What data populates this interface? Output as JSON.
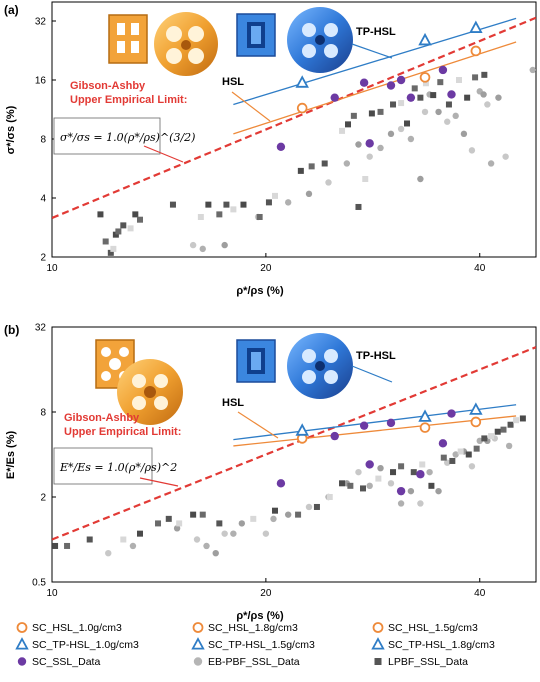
{
  "colors": {
    "orange": "#ee8a3a",
    "blue": "#2f7dc6",
    "purple": "#6c3aa3",
    "grey_light": "#c8c8c8",
    "grey_mid": "#9e9e9e",
    "grey_dark": "#555555",
    "red_limit": "#e23a35"
  },
  "legend": [
    {
      "label": "SC_HSL_1.0g/cm3",
      "marker": "circle-open",
      "color": "#ee8a3a"
    },
    {
      "label": "SC_HSL_1.8g/cm3",
      "marker": "circle-open",
      "color": "#ee8a3a"
    },
    {
      "label": "SC_HSL_1.5g/cm3",
      "marker": "circle-open",
      "color": "#ee8a3a"
    },
    {
      "label": "SC_TP-HSL_1.0g/cm3",
      "marker": "triangle-open",
      "color": "#2f7dc6"
    },
    {
      "label": "SC_TP-HSL_1.5g/cm3",
      "marker": "triangle-open",
      "color": "#2f7dc6"
    },
    {
      "label": "SC_TP-HSL_1.8g/cm3",
      "marker": "triangle-open",
      "color": "#2f7dc6"
    },
    {
      "label": "SC_SSL_Data",
      "marker": "circle-filled",
      "color": "#6c3aa3"
    },
    {
      "label": "EB-PBF_SSL_Data",
      "marker": "circle-filled",
      "color": "#b5b5b5"
    },
    {
      "label": "LPBF_SSL_Data",
      "marker": "square-filled",
      "color": "#555555"
    }
  ],
  "chart_data": [
    {
      "panel": "(a)",
      "type": "scatter",
      "xlabel": "ρ*/ρs (%)",
      "ylabel": "σ*/σs (%)",
      "xscale": "log",
      "yscale": "log",
      "xlim": [
        10,
        48
      ],
      "ylim": [
        2,
        40
      ],
      "xticks": [
        10,
        20,
        40
      ],
      "yticks": [
        2,
        4,
        8,
        16,
        32
      ],
      "annotations": {
        "gibson": [
          "Gibson-Ashby",
          "Upper Empirical Limit:"
        ],
        "formula": "σ*/σs = 1.0(ρ*/ρs)^(3/2)",
        "hsl": "HSL",
        "tphsl": "TP-HSL"
      },
      "limit_line": {
        "coef": 1.0,
        "exponent": 1.5
      },
      "hsl_points": [
        [
          22.5,
          11.5
        ],
        [
          33.5,
          16.5
        ],
        [
          39.5,
          22.5
        ]
      ],
      "hsl_fit": [
        [
          18,
          8.5
        ],
        [
          45,
          25
        ]
      ],
      "tphsl_points": [
        [
          22.5,
          15.5
        ],
        [
          33.5,
          25.5
        ],
        [
          39.5,
          29.5
        ]
      ],
      "tphsl_fit": [
        [
          18,
          12
        ],
        [
          45,
          33
        ]
      ],
      "ssl_points": [
        [
          21,
          7.3
        ],
        [
          25,
          13
        ],
        [
          27.5,
          15.5
        ],
        [
          28,
          7.6
        ],
        [
          30,
          15
        ],
        [
          31,
          16
        ],
        [
          32,
          13
        ],
        [
          35.5,
          18
        ],
        [
          36.5,
          13.5
        ]
      ],
      "eb_points": [
        [
          15.8,
          2.3
        ],
        [
          16.3,
          2.2
        ],
        [
          17.5,
          2.3
        ],
        [
          19.5,
          3.2
        ],
        [
          21.5,
          3.8
        ],
        [
          23,
          4.2
        ],
        [
          24.5,
          4.8
        ],
        [
          26,
          6
        ],
        [
          27,
          7.5
        ],
        [
          28,
          6.5
        ],
        [
          29,
          7.2
        ],
        [
          30,
          8.5
        ],
        [
          31,
          9
        ],
        [
          32,
          8
        ],
        [
          33,
          5
        ],
        [
          33.5,
          11
        ],
        [
          34,
          13.5
        ],
        [
          35,
          11
        ],
        [
          36,
          9.8
        ],
        [
          37,
          10.5
        ],
        [
          38,
          8.5
        ],
        [
          39,
          7
        ],
        [
          40,
          14
        ],
        [
          40.5,
          13.5
        ],
        [
          41,
          12
        ],
        [
          41.5,
          6
        ],
        [
          42.5,
          13
        ],
        [
          43.5,
          6.5
        ],
        [
          47.5,
          18
        ]
      ],
      "lpbf_points": [
        [
          11.7,
          3.3
        ],
        [
          11.9,
          2.4
        ],
        [
          12.1,
          2.1
        ],
        [
          12.2,
          2.2
        ],
        [
          12.3,
          2.6
        ],
        [
          12.4,
          2.7
        ],
        [
          12.6,
          2.9
        ],
        [
          12.9,
          2.8
        ],
        [
          13.1,
          3.3
        ],
        [
          13.3,
          3.1
        ],
        [
          14.8,
          3.7
        ],
        [
          16.2,
          3.2
        ],
        [
          16.6,
          3.7
        ],
        [
          17.2,
          3.3
        ],
        [
          17.6,
          3.7
        ],
        [
          18,
          3.5
        ],
        [
          18.6,
          3.7
        ],
        [
          19.6,
          3.2
        ],
        [
          20.2,
          3.8
        ],
        [
          20.6,
          4.1
        ],
        [
          22.4,
          5.5
        ],
        [
          23.2,
          5.8
        ],
        [
          24.2,
          6
        ],
        [
          25.6,
          8.8
        ],
        [
          26.1,
          9.5
        ],
        [
          26.6,
          10.5
        ],
        [
          27,
          3.6
        ],
        [
          27.6,
          5
        ],
        [
          28.2,
          10.8
        ],
        [
          29,
          11
        ],
        [
          30.2,
          12
        ],
        [
          31,
          12.2
        ],
        [
          31.6,
          9.6
        ],
        [
          32.4,
          14.5
        ],
        [
          33,
          13
        ],
        [
          33.6,
          15.4
        ],
        [
          34.4,
          13.4
        ],
        [
          35.2,
          15.6
        ],
        [
          36.2,
          12
        ],
        [
          37.4,
          16
        ],
        [
          38.4,
          13
        ],
        [
          39.4,
          16.5
        ],
        [
          40.6,
          17
        ]
      ]
    },
    {
      "panel": "(b)",
      "type": "scatter",
      "xlabel": "ρ*/ρs (%)",
      "ylabel": "E*/Es (%)",
      "xscale": "log",
      "yscale": "log",
      "xlim": [
        10,
        48
      ],
      "ylim": [
        0.5,
        32
      ],
      "xticks": [
        10,
        20,
        40
      ],
      "yticks": [
        0.5,
        2,
        8,
        32
      ],
      "annotations": {
        "gibson": [
          "Gibson-Ashby",
          "Upper Empirical Limit:"
        ],
        "formula": "E*/Es = 1.0(ρ*/ρs)^2",
        "hsl": "HSL",
        "tphsl": "TP-HSL"
      },
      "limit_line": {
        "coef": 1.0,
        "exponent": 2
      },
      "hsl_points": [
        [
          22.5,
          5.2
        ],
        [
          33.5,
          6.2
        ],
        [
          39.5,
          6.8
        ]
      ],
      "hsl_fit": [
        [
          18,
          4.6
        ],
        [
          45,
          7.5
        ]
      ],
      "tphsl_points": [
        [
          22.5,
          5.9
        ],
        [
          33.5,
          7.4
        ],
        [
          39.5,
          8.3
        ]
      ],
      "tphsl_fit": [
        [
          18,
          5.1
        ],
        [
          45,
          9.0
        ]
      ],
      "ssl_points": [
        [
          21,
          2.5
        ],
        [
          25,
          5.4
        ],
        [
          27.5,
          6.4
        ],
        [
          28,
          3.4
        ],
        [
          30,
          6.7
        ],
        [
          31,
          2.2
        ],
        [
          33,
          2.9
        ],
        [
          35.5,
          4.8
        ],
        [
          36.5,
          7.8
        ]
      ],
      "eb_points": [
        [
          12,
          0.8
        ],
        [
          13,
          0.9
        ],
        [
          15,
          1.2
        ],
        [
          16,
          1.0
        ],
        [
          16.5,
          0.9
        ],
        [
          17,
          0.8
        ],
        [
          17.5,
          1.1
        ],
        [
          18,
          1.1
        ],
        [
          18.5,
          1.3
        ],
        [
          20,
          1.1
        ],
        [
          20.5,
          1.4
        ],
        [
          21.5,
          1.5
        ],
        [
          23,
          1.7
        ],
        [
          24.5,
          2
        ],
        [
          26,
          2.5
        ],
        [
          27,
          3
        ],
        [
          28,
          2.4
        ],
        [
          29,
          3.2
        ],
        [
          30,
          2.5
        ],
        [
          31,
          1.8
        ],
        [
          32,
          2.2
        ],
        [
          33,
          1.8
        ],
        [
          34,
          3
        ],
        [
          35,
          2.2
        ],
        [
          36,
          3.5
        ],
        [
          37,
          4
        ],
        [
          38,
          4.2
        ],
        [
          39,
          3.3
        ],
        [
          40,
          5
        ],
        [
          41,
          5
        ],
        [
          42,
          5.2
        ],
        [
          44,
          4.6
        ]
      ],
      "lpbf_points": [
        [
          10.1,
          0.9
        ],
        [
          10.5,
          0.9
        ],
        [
          11.3,
          1.0
        ],
        [
          12.6,
          1.0
        ],
        [
          13.3,
          1.1
        ],
        [
          14.1,
          1.3
        ],
        [
          14.6,
          1.4
        ],
        [
          15.1,
          1.3
        ],
        [
          15.8,
          1.5
        ],
        [
          16.3,
          1.5
        ],
        [
          17.2,
          1.3
        ],
        [
          19.2,
          1.4
        ],
        [
          20.6,
          1.6
        ],
        [
          22.2,
          1.5
        ],
        [
          23.6,
          1.7
        ],
        [
          24.6,
          2.0
        ],
        [
          25.6,
          2.5
        ],
        [
          26.3,
          2.4
        ],
        [
          27.4,
          2.3
        ],
        [
          28.8,
          2.7
        ],
        [
          30.2,
          3.0
        ],
        [
          31,
          3.3
        ],
        [
          32.3,
          3.0
        ],
        [
          33.2,
          3.4
        ],
        [
          34.2,
          2.4
        ],
        [
          35.6,
          3.8
        ],
        [
          36.6,
          3.6
        ],
        [
          37.6,
          4.2
        ],
        [
          38.6,
          4.0
        ],
        [
          39.6,
          4.4
        ],
        [
          40.6,
          5.2
        ],
        [
          41.5,
          5.4
        ],
        [
          42.4,
          5.8
        ],
        [
          43.2,
          6.0
        ],
        [
          44.2,
          6.5
        ],
        [
          45,
          7.0
        ],
        [
          46,
          7.2
        ]
      ]
    }
  ]
}
